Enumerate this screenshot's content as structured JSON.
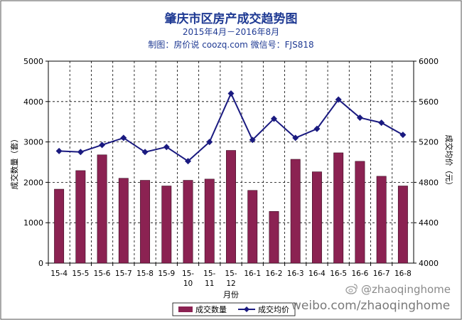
{
  "chart_data": {
    "type": "bar+line",
    "title": "肇庆市区房产成交趋势图",
    "subtitle": "2015年4月－2016年8月",
    "source_line": "制图：房价说 coozq.com 微信号：FJS818",
    "categories": [
      "15-4",
      "15-5",
      "15-6",
      "15-7",
      "15-8",
      "15-9",
      "15-10",
      "15-11",
      "15-12",
      "16-1",
      "16-2",
      "16-3",
      "16-4",
      "16-5",
      "16-6",
      "16-7",
      "16-8"
    ],
    "xlabel": "月份",
    "y_left": {
      "label": "成交数量（套）",
      "range": [
        0,
        5000
      ],
      "ticks": [
        0,
        1000,
        2000,
        3000,
        4000,
        5000
      ]
    },
    "y_right": {
      "label": "成交均价（元）",
      "range": [
        4000,
        6000
      ],
      "ticks": [
        4000,
        4400,
        4800,
        5200,
        5600,
        6000
      ]
    },
    "grid": "dashed",
    "legend_position": "bottom",
    "series": [
      {
        "name": "成交数量",
        "type": "bar",
        "axis": "left",
        "color": "#8b2252",
        "values": [
          1830,
          2290,
          2680,
          2100,
          2050,
          1910,
          2050,
          2080,
          2790,
          1800,
          1280,
          2570,
          2260,
          2730,
          2520,
          2150,
          1910
        ]
      },
      {
        "name": "成交均价",
        "type": "line",
        "axis": "right",
        "color": "#1a1a80",
        "values": [
          5110,
          5100,
          5170,
          5240,
          5100,
          5150,
          5010,
          5200,
          5680,
          5220,
          5430,
          5240,
          5330,
          5620,
          5440,
          5390,
          5270
        ]
      }
    ]
  },
  "watermark": {
    "handle": "@zhaoqinghome",
    "url": "weibo.com/zhaoqinghome"
  }
}
